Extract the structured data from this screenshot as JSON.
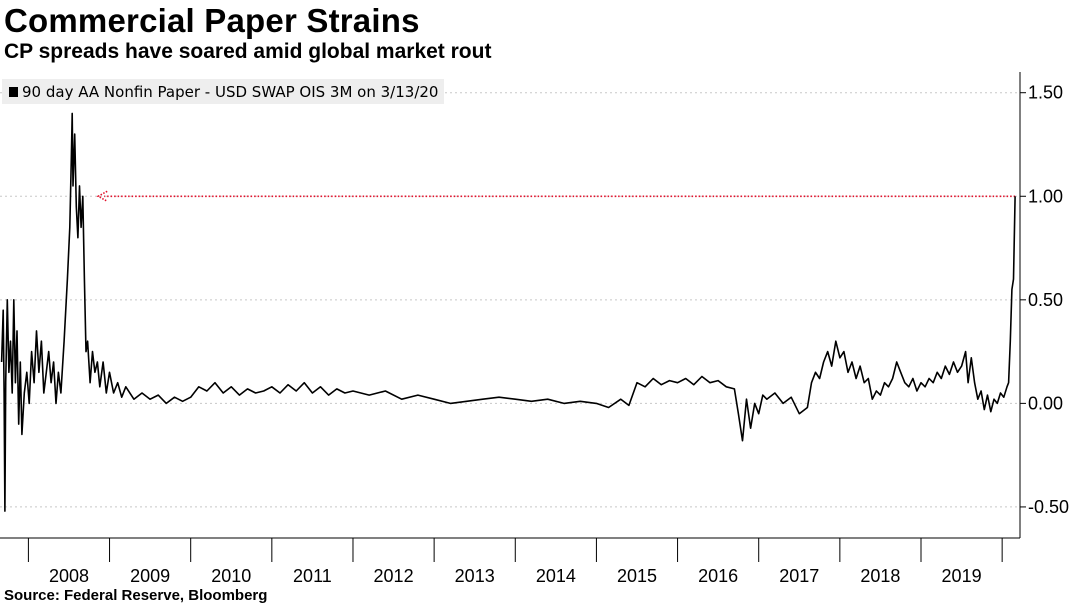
{
  "header": {
    "title": "Commercial Paper Strains",
    "subtitle": "CP spreads have soared amid global market rout"
  },
  "footer": {
    "source": "Source: Federal Reserve, Bloomberg"
  },
  "colors": {
    "series": "#000000",
    "grid": "#c8c8c8",
    "annotation": "#e2102a",
    "legend_bg": "#eeeeee"
  },
  "chart_data": {
    "type": "line",
    "title": "Commercial Paper Strains",
    "subtitle": "CP spreads have soared amid global market rout",
    "xlabel": "",
    "ylabel": "",
    "xlim": [
      2007.65,
      2020.22
    ],
    "ylim": [
      -0.65,
      1.6
    ],
    "x_ticks": [
      "2008",
      "2009",
      "2010",
      "2011",
      "2012",
      "2013",
      "2014",
      "2015",
      "2016",
      "2017",
      "2018",
      "2019"
    ],
    "y_ticks": [
      -0.5,
      0.0,
      0.5,
      1.0,
      1.5
    ],
    "y_tick_labels": [
      "-0.50",
      "0.00",
      "0.50",
      "1.00",
      "1.50"
    ],
    "y_axis_side": "right",
    "grid": "horizontal dotted",
    "legend": {
      "position": "top-left",
      "entries": [
        "90 day AA Nonfin Paper - USD SWAP OIS 3M on 3/13/20"
      ]
    },
    "series": [
      {
        "name": "90 day AA Nonfin Paper - USD SWAP OIS 3M on 3/13/20",
        "points": [
          [
            2007.67,
            0.2
          ],
          [
            2007.69,
            0.45
          ],
          [
            2007.7,
            0.05
          ],
          [
            2007.71,
            -0.52
          ],
          [
            2007.72,
            0.1
          ],
          [
            2007.74,
            0.5
          ],
          [
            2007.76,
            0.15
          ],
          [
            2007.78,
            0.3
          ],
          [
            2007.8,
            0.05
          ],
          [
            2007.82,
            0.5
          ],
          [
            2007.84,
            0.1
          ],
          [
            2007.86,
            0.35
          ],
          [
            2007.88,
            -0.1
          ],
          [
            2007.9,
            0.2
          ],
          [
            2007.92,
            -0.15
          ],
          [
            2007.95,
            0.05
          ],
          [
            2007.98,
            0.15
          ],
          [
            2008.01,
            0.0
          ],
          [
            2008.04,
            0.25
          ],
          [
            2008.07,
            0.1
          ],
          [
            2008.1,
            0.35
          ],
          [
            2008.13,
            0.15
          ],
          [
            2008.16,
            0.3
          ],
          [
            2008.19,
            0.05
          ],
          [
            2008.22,
            0.15
          ],
          [
            2008.25,
            0.25
          ],
          [
            2008.28,
            0.1
          ],
          [
            2008.31,
            0.2
          ],
          [
            2008.34,
            0.0
          ],
          [
            2008.37,
            0.15
          ],
          [
            2008.4,
            0.05
          ],
          [
            2008.44,
            0.3
          ],
          [
            2008.48,
            0.6
          ],
          [
            2008.51,
            0.85
          ],
          [
            2008.53,
            1.2
          ],
          [
            2008.54,
            1.4
          ],
          [
            2008.55,
            1.05
          ],
          [
            2008.57,
            1.3
          ],
          [
            2008.59,
            0.95
          ],
          [
            2008.61,
            0.8
          ],
          [
            2008.63,
            1.05
          ],
          [
            2008.65,
            0.85
          ],
          [
            2008.67,
            1.0
          ],
          [
            2008.69,
            0.6
          ],
          [
            2008.71,
            0.25
          ],
          [
            2008.73,
            0.3
          ],
          [
            2008.76,
            0.1
          ],
          [
            2008.79,
            0.25
          ],
          [
            2008.82,
            0.15
          ],
          [
            2008.85,
            0.2
          ],
          [
            2008.88,
            0.08
          ],
          [
            2008.92,
            0.2
          ],
          [
            2008.96,
            0.05
          ],
          [
            2009.0,
            0.15
          ],
          [
            2009.05,
            0.05
          ],
          [
            2009.1,
            0.1
          ],
          [
            2009.15,
            0.03
          ],
          [
            2009.2,
            0.08
          ],
          [
            2009.3,
            0.02
          ],
          [
            2009.4,
            0.05
          ],
          [
            2009.5,
            0.02
          ],
          [
            2009.6,
            0.04
          ],
          [
            2009.7,
            0.0
          ],
          [
            2009.8,
            0.03
          ],
          [
            2009.9,
            0.01
          ],
          [
            2010.0,
            0.03
          ],
          [
            2010.1,
            0.08
          ],
          [
            2010.2,
            0.06
          ],
          [
            2010.3,
            0.1
          ],
          [
            2010.4,
            0.05
          ],
          [
            2010.5,
            0.08
          ],
          [
            2010.6,
            0.04
          ],
          [
            2010.7,
            0.07
          ],
          [
            2010.8,
            0.05
          ],
          [
            2010.9,
            0.06
          ],
          [
            2011.0,
            0.08
          ],
          [
            2011.1,
            0.05
          ],
          [
            2011.2,
            0.09
          ],
          [
            2011.3,
            0.06
          ],
          [
            2011.4,
            0.1
          ],
          [
            2011.5,
            0.05
          ],
          [
            2011.6,
            0.08
          ],
          [
            2011.7,
            0.04
          ],
          [
            2011.8,
            0.07
          ],
          [
            2011.9,
            0.05
          ],
          [
            2012.0,
            0.06
          ],
          [
            2012.2,
            0.04
          ],
          [
            2012.4,
            0.06
          ],
          [
            2012.6,
            0.02
          ],
          [
            2012.8,
            0.04
          ],
          [
            2013.0,
            0.02
          ],
          [
            2013.2,
            0.0
          ],
          [
            2013.4,
            0.01
          ],
          [
            2013.6,
            0.02
          ],
          [
            2013.8,
            0.03
          ],
          [
            2014.0,
            0.02
          ],
          [
            2014.2,
            0.01
          ],
          [
            2014.4,
            0.02
          ],
          [
            2014.6,
            0.0
          ],
          [
            2014.8,
            0.01
          ],
          [
            2015.0,
            0.0
          ],
          [
            2015.15,
            -0.02
          ],
          [
            2015.3,
            0.02
          ],
          [
            2015.4,
            -0.01
          ],
          [
            2015.5,
            0.1
          ],
          [
            2015.6,
            0.08
          ],
          [
            2015.7,
            0.12
          ],
          [
            2015.8,
            0.09
          ],
          [
            2015.9,
            0.11
          ],
          [
            2016.0,
            0.1
          ],
          [
            2016.1,
            0.12
          ],
          [
            2016.2,
            0.09
          ],
          [
            2016.3,
            0.13
          ],
          [
            2016.4,
            0.1
          ],
          [
            2016.5,
            0.11
          ],
          [
            2016.6,
            0.08
          ],
          [
            2016.7,
            0.07
          ],
          [
            2016.75,
            -0.05
          ],
          [
            2016.8,
            -0.18
          ],
          [
            2016.85,
            0.02
          ],
          [
            2016.9,
            -0.12
          ],
          [
            2016.95,
            0.0
          ],
          [
            2017.0,
            -0.05
          ],
          [
            2017.05,
            0.04
          ],
          [
            2017.1,
            0.02
          ],
          [
            2017.2,
            0.05
          ],
          [
            2017.3,
            0.0
          ],
          [
            2017.4,
            0.03
          ],
          [
            2017.5,
            -0.05
          ],
          [
            2017.6,
            -0.02
          ],
          [
            2017.65,
            0.1
          ],
          [
            2017.7,
            0.15
          ],
          [
            2017.75,
            0.12
          ],
          [
            2017.8,
            0.2
          ],
          [
            2017.85,
            0.25
          ],
          [
            2017.9,
            0.18
          ],
          [
            2017.95,
            0.3
          ],
          [
            2018.0,
            0.22
          ],
          [
            2018.05,
            0.25
          ],
          [
            2018.1,
            0.15
          ],
          [
            2018.15,
            0.2
          ],
          [
            2018.2,
            0.12
          ],
          [
            2018.25,
            0.18
          ],
          [
            2018.3,
            0.1
          ],
          [
            2018.35,
            0.12
          ],
          [
            2018.4,
            0.02
          ],
          [
            2018.45,
            0.06
          ],
          [
            2018.5,
            0.04
          ],
          [
            2018.55,
            0.1
          ],
          [
            2018.6,
            0.08
          ],
          [
            2018.65,
            0.12
          ],
          [
            2018.7,
            0.2
          ],
          [
            2018.75,
            0.15
          ],
          [
            2018.8,
            0.1
          ],
          [
            2018.85,
            0.08
          ],
          [
            2018.9,
            0.12
          ],
          [
            2018.95,
            0.06
          ],
          [
            2019.0,
            0.1
          ],
          [
            2019.05,
            0.08
          ],
          [
            2019.1,
            0.12
          ],
          [
            2019.15,
            0.1
          ],
          [
            2019.2,
            0.15
          ],
          [
            2019.25,
            0.12
          ],
          [
            2019.3,
            0.18
          ],
          [
            2019.35,
            0.14
          ],
          [
            2019.4,
            0.2
          ],
          [
            2019.45,
            0.15
          ],
          [
            2019.5,
            0.18
          ],
          [
            2019.55,
            0.25
          ],
          [
            2019.58,
            0.1
          ],
          [
            2019.62,
            0.22
          ],
          [
            2019.66,
            0.1
          ],
          [
            2019.7,
            0.02
          ],
          [
            2019.74,
            0.06
          ],
          [
            2019.78,
            -0.03
          ],
          [
            2019.82,
            0.04
          ],
          [
            2019.86,
            -0.04
          ],
          [
            2019.9,
            0.02
          ],
          [
            2019.94,
            0.0
          ],
          [
            2019.98,
            0.05
          ],
          [
            2020.02,
            0.03
          ],
          [
            2020.06,
            0.08
          ],
          [
            2020.08,
            0.1
          ],
          [
            2020.1,
            0.3
          ],
          [
            2020.12,
            0.55
          ],
          [
            2020.14,
            0.6
          ],
          [
            2020.16,
            1.0
          ]
        ]
      }
    ],
    "annotation": {
      "type": "dotted-arrow",
      "from_x": 2020.16,
      "to_x": 2008.86,
      "y": 1.0
    }
  }
}
